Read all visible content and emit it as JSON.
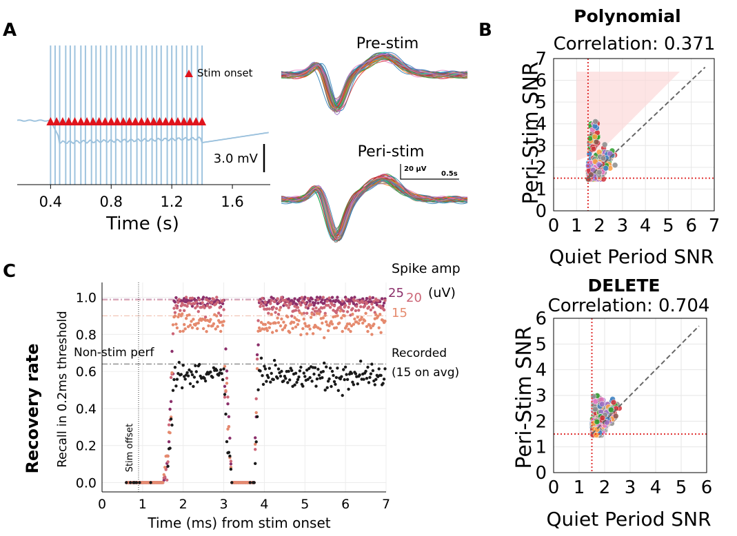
{
  "panel_letters": [
    "A",
    "B",
    "C"
  ],
  "colors": {
    "trace": "#9ec3de",
    "stim": "#e0141c",
    "snr_blue": "#3a7fc1",
    "snr_red": "#d0313a",
    "snr_green": "#2da02c",
    "snr_pink": "#e377c2",
    "snr_purple": "#9b6dc8",
    "snr_gray": "#8c8c8c",
    "snr_brown": "#8c564b",
    "snr_orange": "#ff9f40",
    "amp25": "#8b2f6a",
    "amp20": "#cc6677",
    "amp15": "#e58a6e",
    "recorded": "#1a1a1a"
  },
  "chart_data": [
    {
      "id": "A-trace",
      "type": "line",
      "xlabel": "Time (s)",
      "x_ticks": [
        0.4,
        0.8,
        1.2,
        1.6
      ],
      "x_tick_labels": [
        "0.4",
        "0.8",
        "1.2",
        "1.6"
      ],
      "xlim": [
        0.18,
        1.85
      ],
      "legend": "Stim onset",
      "scale_bar": "3.0 mV",
      "stim_onsets": [
        0.4,
        0.43,
        0.46,
        0.5,
        0.53,
        0.56,
        0.6,
        0.63,
        0.67,
        0.7,
        0.73,
        0.77,
        0.8,
        0.83,
        0.87,
        0.9,
        0.93,
        0.97,
        1.0,
        1.03,
        1.07,
        1.1,
        1.13,
        1.17,
        1.2,
        1.23,
        1.27,
        1.3,
        1.33,
        1.37,
        1.4
      ],
      "stim_markers": [
        0.4,
        0.44,
        0.48,
        0.52,
        0.56,
        0.6,
        0.64,
        0.68,
        0.72,
        0.76,
        0.8,
        0.84,
        0.88,
        0.92,
        0.96,
        1.0,
        1.04,
        1.08,
        1.12,
        1.16,
        1.2,
        1.24,
        1.28,
        1.32,
        1.36,
        1.4
      ]
    },
    {
      "id": "A-waveforms",
      "type": "line",
      "titles": [
        "Pre-stim",
        "Peri-stim"
      ],
      "scale_bar_amp": "20 μV",
      "scale_bar_time": "0.5s"
    },
    {
      "id": "B-polynomial",
      "type": "scatter",
      "title": "Polynomial",
      "subtitle": "Correlation: 0.371",
      "xlabel": "Quiet Period SNR",
      "ylabel": "Peri-Stim SNR",
      "xlim": [
        0,
        7
      ],
      "ylim": [
        0,
        7
      ],
      "x_ticks": [
        0,
        1,
        2,
        3,
        4,
        5,
        6,
        7
      ],
      "y_ticks": [
        0,
        1,
        2,
        3,
        4,
        5,
        6,
        7
      ],
      "threshold_x": 1.5,
      "threshold_y": 1.5,
      "diagonal": [
        1.5,
        6.6
      ]
    },
    {
      "id": "B-delete",
      "type": "scatter",
      "title": "DELETE",
      "subtitle": "Correlation: 0.704",
      "xlabel": "Quiet Period SNR",
      "ylabel": "Peri-Stim SNR",
      "xlim": [
        0,
        6
      ],
      "ylim": [
        0,
        6
      ],
      "x_ticks": [
        0,
        1,
        2,
        3,
        4,
        5,
        6
      ],
      "y_ticks": [
        0,
        1,
        2,
        3,
        4,
        5,
        6
      ],
      "threshold_x": 1.5,
      "threshold_y": 1.5,
      "diagonal": [
        1.5,
        5.7
      ]
    },
    {
      "id": "C-recovery",
      "type": "scatter",
      "ylabel_main": "Recovery rate",
      "ylabel": "Recall in 0.2ms threshold",
      "xlabel": "Time (ms) from stim onset",
      "xlim": [
        0,
        7
      ],
      "ylim": [
        -0.05,
        1.08
      ],
      "x_ticks": [
        0,
        1,
        2,
        3,
        4,
        5,
        6,
        7
      ],
      "y_ticks": [
        0.0,
        0.2,
        0.4,
        0.6,
        0.8,
        1.0
      ],
      "y_tick_labels": [
        "0.0",
        "0.2",
        "0.4",
        "0.6",
        "0.8",
        "1.0"
      ],
      "stim_offset_x": 0.9,
      "stim_offset_label": "Stim offset",
      "non_stim_label": "Non-stim perf",
      "legend_title": "Spike amp",
      "legend_unit": "(uV)",
      "series": [
        {
          "name": "25",
          "baseline": 0.99,
          "level": 0.975,
          "spread": 0.03
        },
        {
          "name": "20",
          "baseline": 0.985,
          "level": 0.955,
          "spread": 0.05
        },
        {
          "name": "15",
          "baseline": 0.9,
          "level": 0.86,
          "spread": 0.06
        },
        {
          "name": "Recorded",
          "name2": "(15 on avg)",
          "baseline": 0.64,
          "level": 0.58,
          "spread": 0.07
        }
      ]
    }
  ]
}
